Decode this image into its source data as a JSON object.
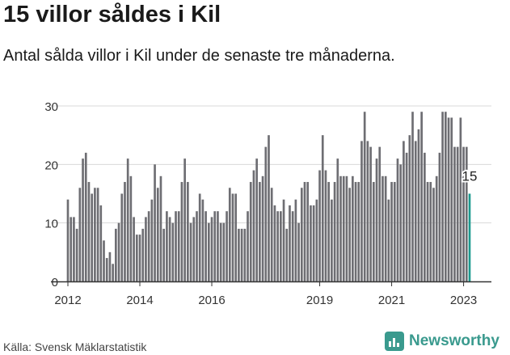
{
  "header": {
    "title": "15 villor såldes i Kil",
    "subtitle": "Antal sålda villor i Kil under de senaste tre månaderna."
  },
  "footer": {
    "source": "Källa: Svensk Mäklarstatistik",
    "brand": "Newsworthy"
  },
  "colors": {
    "bar": "#6e6e73",
    "highlight": "#1d9a8f",
    "grid": "#d9d9d9",
    "axis": "#333333",
    "brand": "#3a9a8e"
  },
  "chart_data": {
    "type": "bar",
    "title": "15 villor såldes i Kil",
    "subtitle": "Antal sålda villor i Kil under de senaste tre månaderna.",
    "xlabel": "",
    "ylabel": "",
    "ylim": [
      0,
      30
    ],
    "yticks": [
      0,
      10,
      20,
      30
    ],
    "grid": true,
    "x_start": "2012-01",
    "x_end": "2023-01",
    "xtick_labels": [
      "2012",
      "2014",
      "2016",
      "2019",
      "2021",
      "2023"
    ],
    "xtick_positions": [
      "2012-01",
      "2014-01",
      "2016-01",
      "2019-01",
      "2021-01",
      "2023-01"
    ],
    "values": [
      14,
      11,
      11,
      9,
      16,
      21,
      22,
      17,
      15,
      16,
      16,
      13,
      7,
      4,
      5,
      3,
      9,
      10,
      15,
      17,
      21,
      18,
      11,
      8,
      8,
      9,
      11,
      12,
      14,
      20,
      16,
      18,
      9,
      12,
      11,
      10,
      12,
      12,
      17,
      21,
      17,
      10,
      11,
      12,
      15,
      14,
      12,
      10,
      11,
      12,
      12,
      10,
      10,
      12,
      16,
      15,
      15,
      9,
      9,
      9,
      12,
      17,
      19,
      21,
      17,
      18,
      23,
      25,
      16,
      13,
      12,
      12,
      14,
      9,
      13,
      12,
      14,
      10,
      16,
      17,
      17,
      13,
      13,
      14,
      19,
      25,
      19,
      17,
      14,
      17,
      21,
      18,
      18,
      18,
      16,
      18,
      17,
      17,
      24,
      29,
      24,
      23,
      17,
      21,
      23,
      18,
      18,
      14,
      17,
      17,
      21,
      20,
      24,
      22,
      25,
      29,
      24,
      26,
      29,
      22,
      17,
      17,
      16,
      18,
      22,
      29,
      29,
      28,
      28,
      23,
      23,
      28,
      23,
      23,
      15
    ],
    "highlight_last": true,
    "annotation": "15"
  }
}
